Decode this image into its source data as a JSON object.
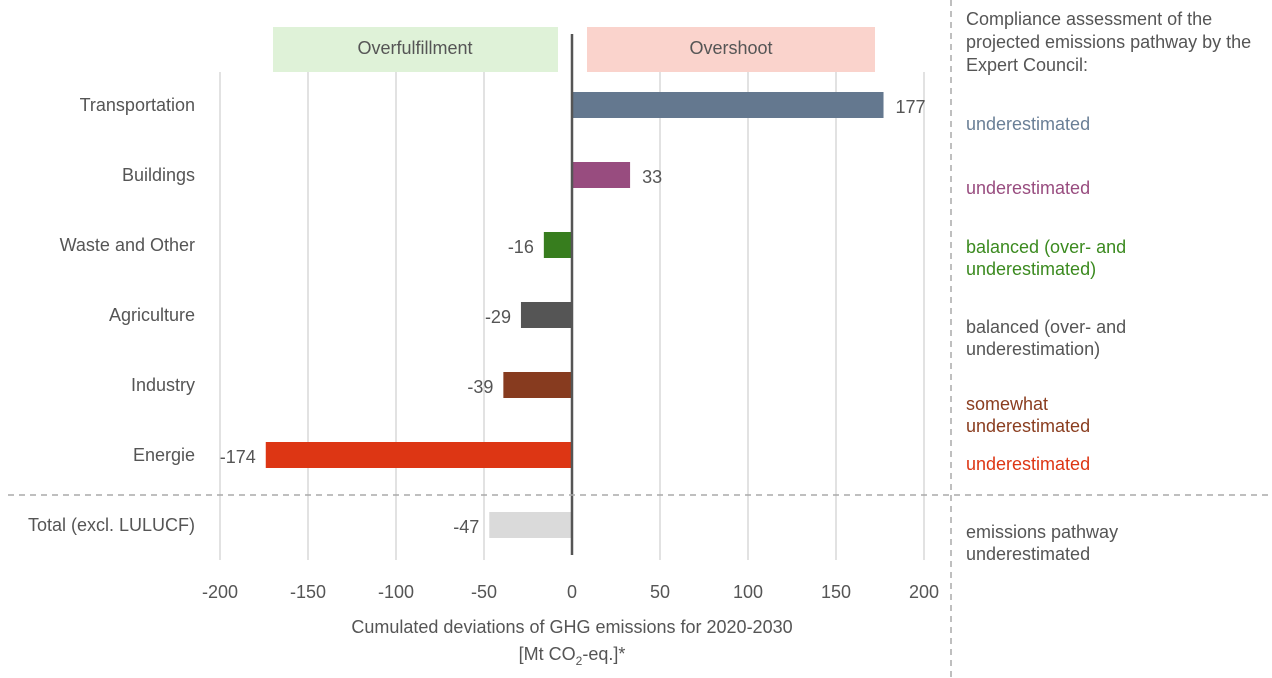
{
  "chart_data": {
    "type": "bar",
    "orientation": "horizontal",
    "categories": [
      "Transportation",
      "Buildings",
      "Waste and Other",
      "Agriculture",
      "Industry",
      "Energie",
      "Total (excl. LULUCF)"
    ],
    "values": [
      177,
      33,
      -16,
      -29,
      -39,
      -174,
      -47
    ],
    "value_labels": [
      "177",
      "33",
      "-16",
      "-29",
      "-39",
      "-174",
      "-47"
    ],
    "colors": [
      "#64788f",
      "#984c7f",
      "#377d1e",
      "#555555",
      "#873b1f",
      "#dd3614",
      "#dadada"
    ],
    "xlim": [
      -200,
      200
    ],
    "xticks": [
      -200,
      -150,
      -100,
      -50,
      0,
      50,
      100,
      150,
      200
    ],
    "xtick_labels": [
      "-200",
      "-150",
      "-100",
      "-50",
      "0",
      "50",
      "100",
      "150",
      "200"
    ],
    "xlabel_line1": "Cumulated deviations of GHG emissions for 2020-2030",
    "xlabel_line2_prefix": "[Mt CO",
    "xlabel_line2_sub": "2",
    "xlabel_line2_suffix": "-eq.]*",
    "grid": "vertical",
    "region_labels": {
      "negative": "Overfulfillment",
      "positive": "Overshoot",
      "negative_color": "#dff2d8",
      "positive_color": "#fad3cc"
    }
  },
  "assessment": {
    "title": "Compliance assessment of the projected emissions pathway by the Expert Council:",
    "items": [
      {
        "text": "underestimated",
        "color": "#6a7f96"
      },
      {
        "text": "underestimated",
        "color": "#984c7f"
      },
      {
        "text": "balanced (over- and underestimated)",
        "color": "#3b8a1f"
      },
      {
        "text": "balanced (over- and underestimation)",
        "color": "#555555"
      },
      {
        "text": "somewhat  underestimated",
        "color": "#8a3d1f"
      },
      {
        "text": "underestimated",
        "color": "#dd3614"
      },
      {
        "text": "emissions pathway underestimated",
        "color": "#555555"
      }
    ]
  }
}
